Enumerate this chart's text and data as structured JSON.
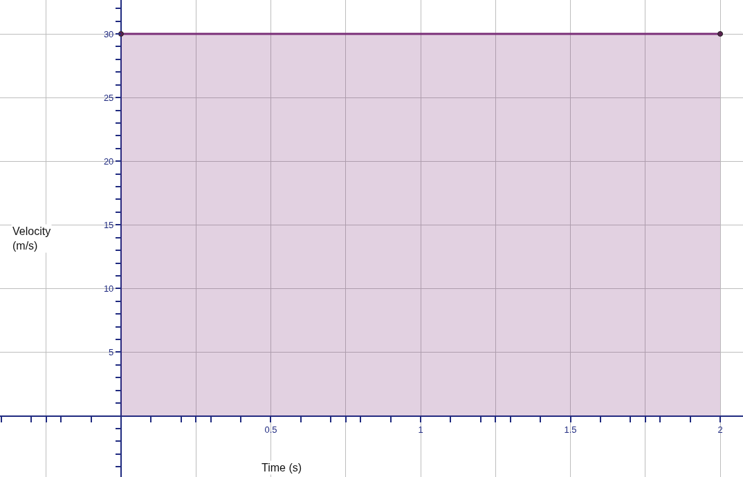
{
  "chart_data": {
    "type": "area",
    "xlabel": "Time (s)",
    "ylabel": "Velocity\n(m/s)",
    "x": [
      0,
      2
    ],
    "series": [
      {
        "color": "#7a2f78",
        "values": [
          30,
          30
        ]
      }
    ],
    "xlim": [
      -0.404,
      2.076
    ],
    "ylim": [
      -4.8,
      32.66
    ],
    "xticks": [
      {
        "value": -0.25,
        "label": null
      },
      {
        "value": 0.25,
        "label": null
      },
      0.5,
      {
        "value": 0.75,
        "label": null
      },
      1,
      {
        "value": 1.25,
        "label": null
      },
      1.5,
      {
        "value": 1.75,
        "label": null
      },
      2
    ],
    "yticks": [
      5,
      10,
      15,
      20,
      25,
      30
    ],
    "grid": true,
    "marker": "circle",
    "line_style": "solid"
  }
}
